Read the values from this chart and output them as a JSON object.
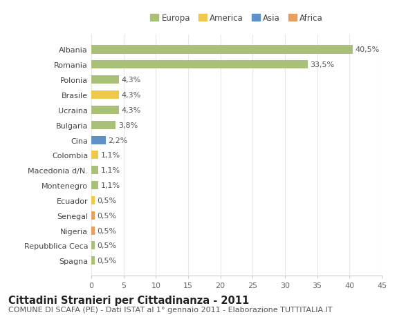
{
  "categories": [
    "Spagna",
    "Repubblica Ceca",
    "Nigeria",
    "Senegal",
    "Ecuador",
    "Montenegro",
    "Macedonia d/N.",
    "Colombia",
    "Cina",
    "Bulgaria",
    "Ucraina",
    "Brasile",
    "Polonia",
    "Romania",
    "Albania"
  ],
  "values": [
    0.5,
    0.5,
    0.5,
    0.5,
    0.5,
    1.1,
    1.1,
    1.1,
    2.2,
    3.8,
    4.3,
    4.3,
    4.3,
    33.5,
    40.5
  ],
  "labels": [
    "0,5%",
    "0,5%",
    "0,5%",
    "0,5%",
    "0,5%",
    "1,1%",
    "1,1%",
    "1,1%",
    "2,2%",
    "3,8%",
    "4,3%",
    "4,3%",
    "4,3%",
    "33,5%",
    "40,5%"
  ],
  "colors": [
    "#a8c078",
    "#a8c078",
    "#e8a060",
    "#e8a060",
    "#f0c84a",
    "#a8c078",
    "#a8c078",
    "#f0c84a",
    "#6090c8",
    "#a8c078",
    "#a8c078",
    "#f0c84a",
    "#a8c078",
    "#a8c078",
    "#a8c078"
  ],
  "continent": [
    "Europa",
    "Europa",
    "Africa",
    "Africa",
    "America",
    "Europa",
    "Europa",
    "America",
    "Asia",
    "Europa",
    "Europa",
    "America",
    "Europa",
    "Europa",
    "Europa"
  ],
  "legend_labels": [
    "Europa",
    "America",
    "Asia",
    "Africa"
  ],
  "legend_colors": [
    "#a8c078",
    "#f0c84a",
    "#6090c8",
    "#e8a060"
  ],
  "title": "Cittadini Stranieri per Cittadinanza - 2011",
  "subtitle": "COMUNE DI SCAFA (PE) - Dati ISTAT al 1° gennaio 2011 - Elaborazione TUTTITALIA.IT",
  "xlim": [
    0,
    45
  ],
  "xticks": [
    0,
    5,
    10,
    15,
    20,
    25,
    30,
    35,
    40,
    45
  ],
  "background_color": "#ffffff",
  "grid_color": "#e8e8e8",
  "bar_height": 0.55,
  "title_fontsize": 10.5,
  "subtitle_fontsize": 8,
  "label_fontsize": 8,
  "tick_fontsize": 8,
  "legend_fontsize": 8.5
}
